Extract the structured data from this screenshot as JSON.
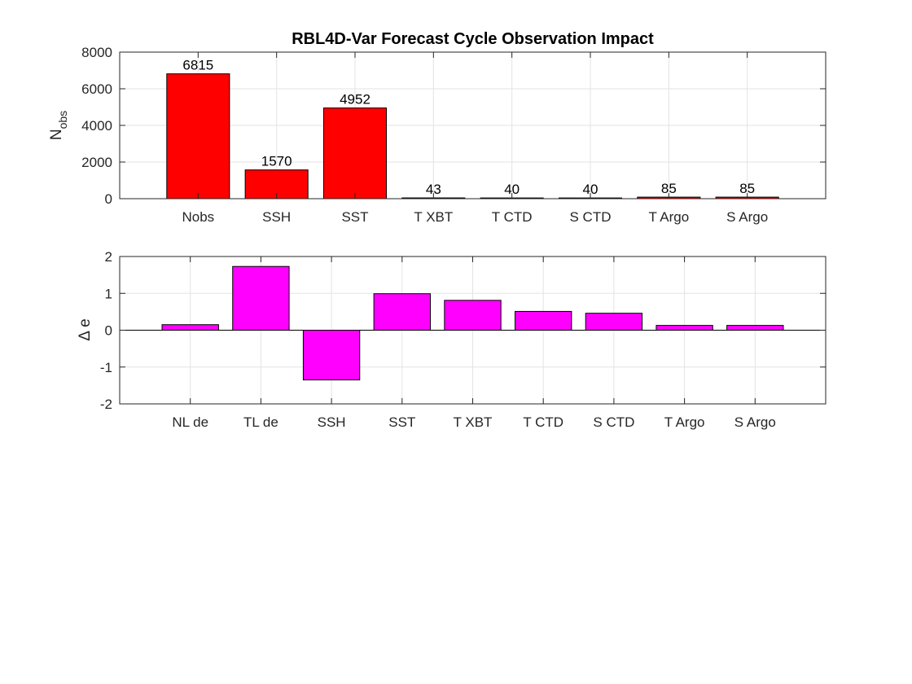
{
  "chart_data": [
    {
      "type": "bar",
      "title": "RBL4D-Var Forecast Cycle Observation Impact",
      "ylabel": {
        "main": "N",
        "sub": "obs"
      },
      "categories": [
        "Nobs",
        "SSH",
        "SST",
        "T XBT",
        "T CTD",
        "S CTD",
        "T Argo",
        "S Argo"
      ],
      "values": [
        6815,
        1570,
        4952,
        43,
        40,
        40,
        85,
        85
      ],
      "data_labels": [
        "6815",
        "1570",
        "4952",
        "43",
        "40",
        "40",
        "85",
        "85"
      ],
      "ylim": [
        0,
        8000
      ],
      "yticks": [
        0,
        2000,
        4000,
        6000,
        8000
      ],
      "ytick_labels": [
        "0",
        "2000",
        "4000",
        "6000",
        "8000"
      ],
      "grid": true,
      "color": "#ff0000"
    },
    {
      "type": "bar",
      "title": "",
      "ylabel": {
        "main": "Δ e",
        "sub": ""
      },
      "categories": [
        "NL de",
        "TL de",
        "SSH",
        "SST",
        "T XBT",
        "T CTD",
        "S CTD",
        "T Argo",
        "S Argo"
      ],
      "values": [
        0.15,
        1.73,
        -1.35,
        0.99,
        0.81,
        0.51,
        0.46,
        0.13,
        0.13
      ],
      "ylim": [
        -2,
        2
      ],
      "yticks": [
        -2,
        -1,
        0,
        1,
        2
      ],
      "ytick_labels": [
        "-2",
        "-1",
        "0",
        "1",
        "2"
      ],
      "grid": true,
      "color": "#ff00ff"
    }
  ]
}
